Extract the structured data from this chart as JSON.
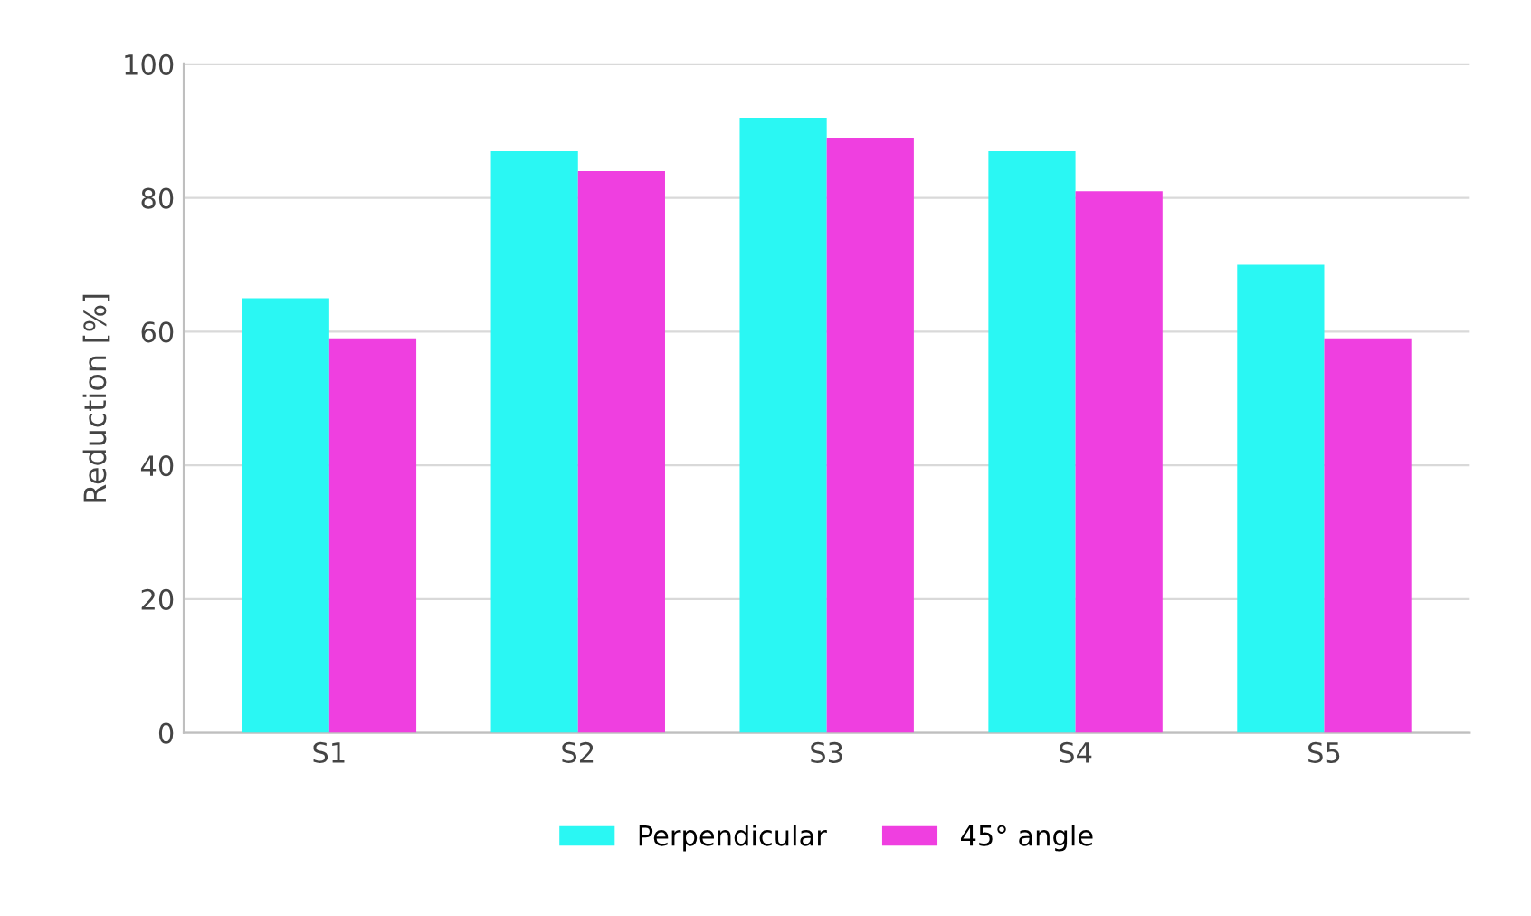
{
  "chart_data": {
    "type": "bar",
    "ylabel": "Reduction [%]",
    "categories": [
      "S1",
      "S2",
      "S3",
      "S4",
      "S5"
    ],
    "series": [
      {
        "name": "Perpendicular",
        "color": "#2af7f3",
        "values": [
          65,
          87,
          92,
          87,
          70
        ]
      },
      {
        "name": "45° angle",
        "color": "#ef3fe0",
        "values": [
          59,
          84,
          89,
          81,
          59
        ]
      }
    ],
    "ylim": [
      0,
      100
    ],
    "yticks": [
      0,
      20,
      40,
      60,
      80,
      100
    ],
    "grid": "y",
    "legend": "bottom"
  }
}
